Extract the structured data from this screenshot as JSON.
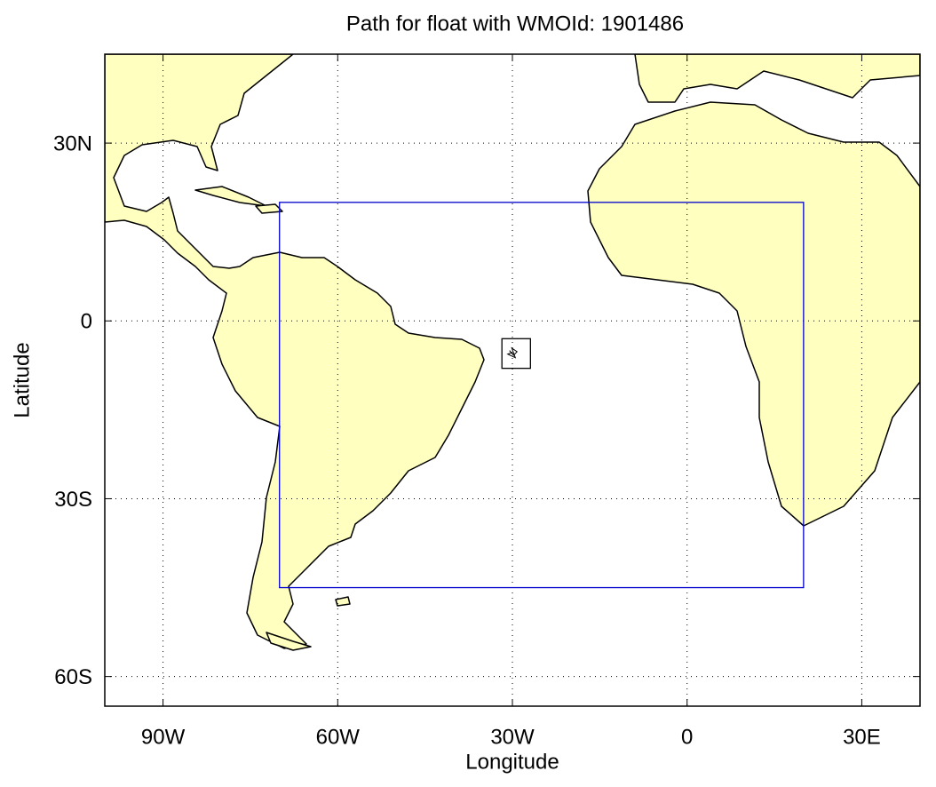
{
  "chart_data": {
    "type": "map",
    "title": "Path for float with WMOId: 1901486",
    "xlabel": "Longitude",
    "ylabel": "Latitude",
    "xlim": [
      -100,
      40
    ],
    "ylim": [
      -65,
      45
    ],
    "xticks": [
      {
        "value": -90,
        "label": "90W"
      },
      {
        "value": -60,
        "label": "60W"
      },
      {
        "value": -30,
        "label": "30W"
      },
      0,
      {
        "value": 30,
        "label": "30E"
      }
    ],
    "yticks": [
      {
        "value": 30,
        "label": "30N"
      },
      0,
      {
        "value": -30,
        "label": "30S"
      },
      {
        "value": -60,
        "label": "60S"
      }
    ],
    "grid": true,
    "boxes": [
      {
        "lon": [
          -70,
          20
        ],
        "lat": [
          -45,
          20
        ],
        "color": "#0000cc"
      },
      {
        "lon": [
          -31.8,
          -26.9
        ],
        "lat": [
          -8,
          -3
        ],
        "color": "#000000"
      }
    ],
    "path": {
      "color": "#000000",
      "x": [
        -30.5,
        -29.8,
        -29.2,
        -30.1,
        -29.5,
        -30.8,
        -30.0
      ],
      "values": [
        -5.0,
        -5.8,
        -5.2,
        -4.6,
        -6.2,
        -5.6,
        -5.3
      ]
    }
  }
}
